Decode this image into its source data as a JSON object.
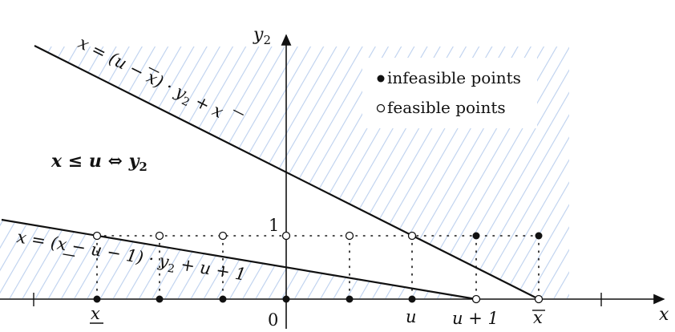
{
  "axes": {
    "x_label": "x",
    "y_label": "y",
    "y_label_sub": "2",
    "origin_label": "0",
    "one_label": "1"
  },
  "ticks": {
    "x_lower": "x",
    "u": "u",
    "u_plus_1": "u + 1",
    "x_upper": "x"
  },
  "legend": {
    "infeasible": "infeasible points",
    "feasible": "feasible points"
  },
  "lines": {
    "upper": {
      "prefix": "x = (u − ",
      "xbar": "x",
      "mid": ") · y",
      "sub": "2",
      "suffix": " + ",
      "xbar2": "x"
    },
    "lower": {
      "prefix": "x = (",
      "xlow": "x",
      "mid": " − u − 1) · y",
      "sub": "2",
      "suffix": " + u + 1"
    }
  },
  "annotation": {
    "lhs": "x ≤ u ⇔ y",
    "sub": "2"
  },
  "points": {
    "bottom_filled": [
      "x_lower",
      "p2",
      "p3",
      "0",
      "p5",
      "u"
    ],
    "bottom_feasible": [
      "u+1",
      "x_upper"
    ],
    "top_feasible": [
      "x_lower",
      "p2",
      "p3",
      "0",
      "p5",
      "u"
    ],
    "top_infeasible": [
      "u+1",
      "x_upper"
    ]
  },
  "colors": {
    "hatch": "#bcd0ee",
    "line": "#111111"
  }
}
